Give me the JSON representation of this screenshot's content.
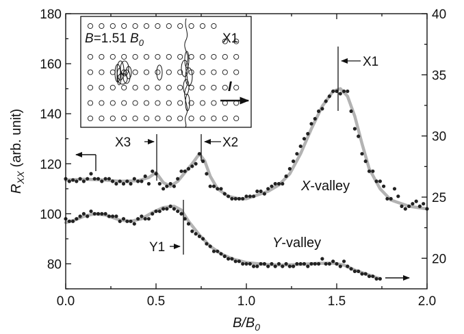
{
  "chart_data": {
    "type": "scatter",
    "xlabel": "B/B",
    "xlabel_sub": "0",
    "ylabel": "R",
    "ylabel_sub": "XX",
    "ylabel_unit": " (arb. unit)",
    "xlim": [
      0.0,
      2.0
    ],
    "ylim": [
      70,
      180
    ],
    "y2lim": [
      17.5,
      40
    ],
    "x_ticks": [
      "0.0",
      "0.5",
      "1.0",
      "1.5",
      "2.0"
    ],
    "y_ticks": [
      "80",
      "100",
      "120",
      "140",
      "160",
      "180"
    ],
    "y2_ticks": [
      "20",
      "25",
      "30",
      "35",
      "40"
    ],
    "colors": {
      "points": "#222222",
      "fit": "#b3b3b3",
      "axis": "#111111"
    },
    "series": [
      {
        "name": "X-valley",
        "name_italic": "X",
        "name_rest": "-valley",
        "axis": "left",
        "points": [
          [
            0.0,
            114
          ],
          [
            0.02,
            113
          ],
          [
            0.04,
            113.5
          ],
          [
            0.06,
            113
          ],
          [
            0.08,
            114
          ],
          [
            0.1,
            113
          ],
          [
            0.12,
            114
          ],
          [
            0.14,
            116
          ],
          [
            0.16,
            114
          ],
          [
            0.18,
            114
          ],
          [
            0.2,
            113
          ],
          [
            0.22,
            114
          ],
          [
            0.24,
            114
          ],
          [
            0.26,
            113
          ],
          [
            0.28,
            112
          ],
          [
            0.3,
            113
          ],
          [
            0.32,
            112
          ],
          [
            0.34,
            113
          ],
          [
            0.36,
            112
          ],
          [
            0.38,
            114
          ],
          [
            0.4,
            113
          ],
          [
            0.42,
            113
          ],
          [
            0.44,
            115
          ],
          [
            0.46,
            112
          ],
          [
            0.48,
            117
          ],
          [
            0.5,
            116
          ],
          [
            0.52,
            112
          ],
          [
            0.54,
            110
          ],
          [
            0.56,
            111
          ],
          [
            0.58,
            112
          ],
          [
            0.6,
            111
          ],
          [
            0.62,
            114
          ],
          [
            0.64,
            117
          ],
          [
            0.66,
            117
          ],
          [
            0.68,
            118
          ],
          [
            0.7,
            119
          ],
          [
            0.72,
            120
          ],
          [
            0.74,
            124
          ],
          [
            0.76,
            121
          ],
          [
            0.78,
            116
          ],
          [
            0.8,
            111
          ],
          [
            0.82,
            111
          ],
          [
            0.84,
            110
          ],
          [
            0.86,
            110
          ],
          [
            0.88,
            108
          ],
          [
            0.9,
            107
          ],
          [
            0.92,
            106
          ],
          [
            0.94,
            106
          ],
          [
            0.96,
            106
          ],
          [
            0.98,
            106
          ],
          [
            1.0,
            107
          ],
          [
            1.02,
            107
          ],
          [
            1.04,
            107
          ],
          [
            1.06,
            109
          ],
          [
            1.08,
            109
          ],
          [
            1.1,
            108
          ],
          [
            1.12,
            110
          ],
          [
            1.14,
            111
          ],
          [
            1.16,
            112
          ],
          [
            1.18,
            112
          ],
          [
            1.2,
            112
          ],
          [
            1.22,
            115
          ],
          [
            1.24,
            118
          ],
          [
            1.26,
            121
          ],
          [
            1.28,
            124
          ],
          [
            1.3,
            127
          ],
          [
            1.32,
            130
          ],
          [
            1.34,
            132
          ],
          [
            1.36,
            136
          ],
          [
            1.38,
            138
          ],
          [
            1.4,
            141
          ],
          [
            1.42,
            142
          ],
          [
            1.44,
            145
          ],
          [
            1.46,
            147
          ],
          [
            1.48,
            149
          ],
          [
            1.5,
            149
          ],
          [
            1.52,
            148
          ],
          [
            1.54,
            149
          ],
          [
            1.56,
            149
          ],
          [
            1.58,
            141
          ],
          [
            1.6,
            134
          ],
          [
            1.62,
            131
          ],
          [
            1.64,
            124
          ],
          [
            1.66,
            121
          ],
          [
            1.68,
            117
          ],
          [
            1.7,
            117
          ],
          [
            1.72,
            113
          ],
          [
            1.74,
            113
          ],
          [
            1.76,
            111
          ],
          [
            1.78,
            106
          ],
          [
            1.8,
            106
          ],
          [
            1.82,
            110
          ],
          [
            1.84,
            107
          ],
          [
            1.86,
            103
          ],
          [
            1.88,
            102
          ],
          [
            1.9,
            103
          ],
          [
            1.92,
            104
          ],
          [
            1.94,
            105
          ],
          [
            1.96,
            103
          ],
          [
            1.98,
            104
          ],
          [
            2.0,
            102
          ]
        ]
      },
      {
        "name": "Y-valley",
        "name_italic": "Y",
        "name_rest": "-valley",
        "axis": "left",
        "points": [
          [
            0.0,
            98
          ],
          [
            0.02,
            97
          ],
          [
            0.04,
            97
          ],
          [
            0.06,
            98
          ],
          [
            0.08,
            99
          ],
          [
            0.1,
            100
          ],
          [
            0.12,
            99
          ],
          [
            0.14,
            101
          ],
          [
            0.16,
            100
          ],
          [
            0.18,
            100
          ],
          [
            0.2,
            100
          ],
          [
            0.22,
            100
          ],
          [
            0.24,
            99
          ],
          [
            0.26,
            99
          ],
          [
            0.28,
            99
          ],
          [
            0.3,
            97
          ],
          [
            0.32,
            98
          ],
          [
            0.34,
            97
          ],
          [
            0.36,
            97
          ],
          [
            0.38,
            96
          ],
          [
            0.4,
            98
          ],
          [
            0.42,
            99
          ],
          [
            0.44,
            98
          ],
          [
            0.46,
            98
          ],
          [
            0.48,
            100
          ],
          [
            0.5,
            101
          ],
          [
            0.52,
            101
          ],
          [
            0.54,
            102
          ],
          [
            0.56,
            102
          ],
          [
            0.58,
            103
          ],
          [
            0.6,
            102
          ],
          [
            0.62,
            101
          ],
          [
            0.64,
            100
          ],
          [
            0.66,
            98
          ],
          [
            0.68,
            96
          ],
          [
            0.7,
            93
          ],
          [
            0.72,
            92
          ],
          [
            0.74,
            91
          ],
          [
            0.76,
            90
          ],
          [
            0.78,
            88
          ],
          [
            0.8,
            87
          ],
          [
            0.82,
            85
          ],
          [
            0.84,
            85
          ],
          [
            0.86,
            84
          ],
          [
            0.88,
            83
          ],
          [
            0.9,
            82
          ],
          [
            0.92,
            82
          ],
          [
            0.94,
            81
          ],
          [
            0.96,
            81
          ],
          [
            0.98,
            80
          ],
          [
            1.0,
            80
          ],
          [
            1.02,
            80
          ],
          [
            1.04,
            79
          ],
          [
            1.06,
            79
          ],
          [
            1.08,
            80
          ],
          [
            1.1,
            80
          ],
          [
            1.12,
            79
          ],
          [
            1.14,
            80
          ],
          [
            1.16,
            79
          ],
          [
            1.18,
            80
          ],
          [
            1.2,
            79
          ],
          [
            1.22,
            80
          ],
          [
            1.24,
            79
          ],
          [
            1.26,
            79
          ],
          [
            1.28,
            80
          ],
          [
            1.3,
            80
          ],
          [
            1.32,
            80
          ],
          [
            1.34,
            79
          ],
          [
            1.36,
            80
          ],
          [
            1.38,
            80
          ],
          [
            1.4,
            80
          ],
          [
            1.42,
            82
          ],
          [
            1.44,
            80
          ],
          [
            1.46,
            80
          ],
          [
            1.48,
            81
          ],
          [
            1.5,
            80
          ],
          [
            1.52,
            79
          ],
          [
            1.54,
            81
          ],
          [
            1.56,
            79
          ],
          [
            1.58,
            78
          ],
          [
            1.6,
            77
          ],
          [
            1.62,
            77
          ],
          [
            1.64,
            76
          ],
          [
            1.66,
            76
          ],
          [
            1.68,
            75
          ],
          [
            1.7,
            75
          ],
          [
            1.72,
            74
          ],
          [
            1.74,
            74
          ]
        ]
      }
    ],
    "fits": [
      {
        "name": "X-valley",
        "points": [
          [
            0.0,
            113.5
          ],
          [
            0.1,
            113.8
          ],
          [
            0.2,
            113.6
          ],
          [
            0.3,
            113.0
          ],
          [
            0.4,
            113.2
          ],
          [
            0.46,
            114.5
          ],
          [
            0.5,
            116.5
          ],
          [
            0.54,
            112.5
          ],
          [
            0.58,
            111.0
          ],
          [
            0.62,
            113.0
          ],
          [
            0.66,
            116.5
          ],
          [
            0.7,
            120.0
          ],
          [
            0.74,
            124.0
          ],
          [
            0.77,
            121.0
          ],
          [
            0.8,
            115.0
          ],
          [
            0.84,
            110.0
          ],
          [
            0.9,
            107.0
          ],
          [
            0.96,
            106.0
          ],
          [
            1.0,
            106.0
          ],
          [
            1.06,
            107.5
          ],
          [
            1.12,
            109.0
          ],
          [
            1.18,
            111.5
          ],
          [
            1.24,
            116.0
          ],
          [
            1.3,
            124.0
          ],
          [
            1.36,
            134.0
          ],
          [
            1.42,
            143.0
          ],
          [
            1.48,
            149.0
          ],
          [
            1.52,
            150.0
          ],
          [
            1.56,
            147.0
          ],
          [
            1.6,
            139.0
          ],
          [
            1.64,
            128.0
          ],
          [
            1.68,
            118.0
          ],
          [
            1.74,
            110.0
          ],
          [
            1.8,
            105.5
          ],
          [
            1.9,
            103.0
          ],
          [
            2.0,
            102.0
          ]
        ]
      },
      {
        "name": "Y-valley",
        "points": [
          [
            0.0,
            96.5
          ],
          [
            0.05,
            97.5
          ],
          [
            0.1,
            99.0
          ],
          [
            0.16,
            100.0
          ],
          [
            0.22,
            99.5
          ],
          [
            0.3,
            97.5
          ],
          [
            0.36,
            97.0
          ],
          [
            0.42,
            98.0
          ],
          [
            0.48,
            100.5
          ],
          [
            0.54,
            102.5
          ],
          [
            0.6,
            103.0
          ],
          [
            0.64,
            101.5
          ],
          [
            0.68,
            97.0
          ],
          [
            0.74,
            91.5
          ],
          [
            0.8,
            87.0
          ],
          [
            0.86,
            84.0
          ],
          [
            0.92,
            82.0
          ],
          [
            1.0,
            80.5
          ],
          [
            1.1,
            79.8
          ],
          [
            1.2,
            79.5
          ],
          [
            1.3,
            79.8
          ],
          [
            1.4,
            80.2
          ],
          [
            1.48,
            80.3
          ],
          [
            1.54,
            79.5
          ],
          [
            1.6,
            77.5
          ],
          [
            1.66,
            76.0
          ],
          [
            1.74,
            74.0
          ]
        ]
      }
    ],
    "annotations": {
      "X1": {
        "label": "X1",
        "x": 1.51
      },
      "X2": {
        "label": "X2",
        "x": 0.75
      },
      "X3": {
        "label": "X3",
        "x": 0.5
      },
      "Y1": {
        "label": "Y1",
        "x": 0.65
      }
    },
    "inset": {
      "corner_label": "X1",
      "field_prefix": "B",
      "field_value": "=1.51 ",
      "field_unit": "B",
      "field_unit_sub": "0",
      "current_label": "I",
      "lattice_cols": 14,
      "lattice_rows": 7
    }
  }
}
